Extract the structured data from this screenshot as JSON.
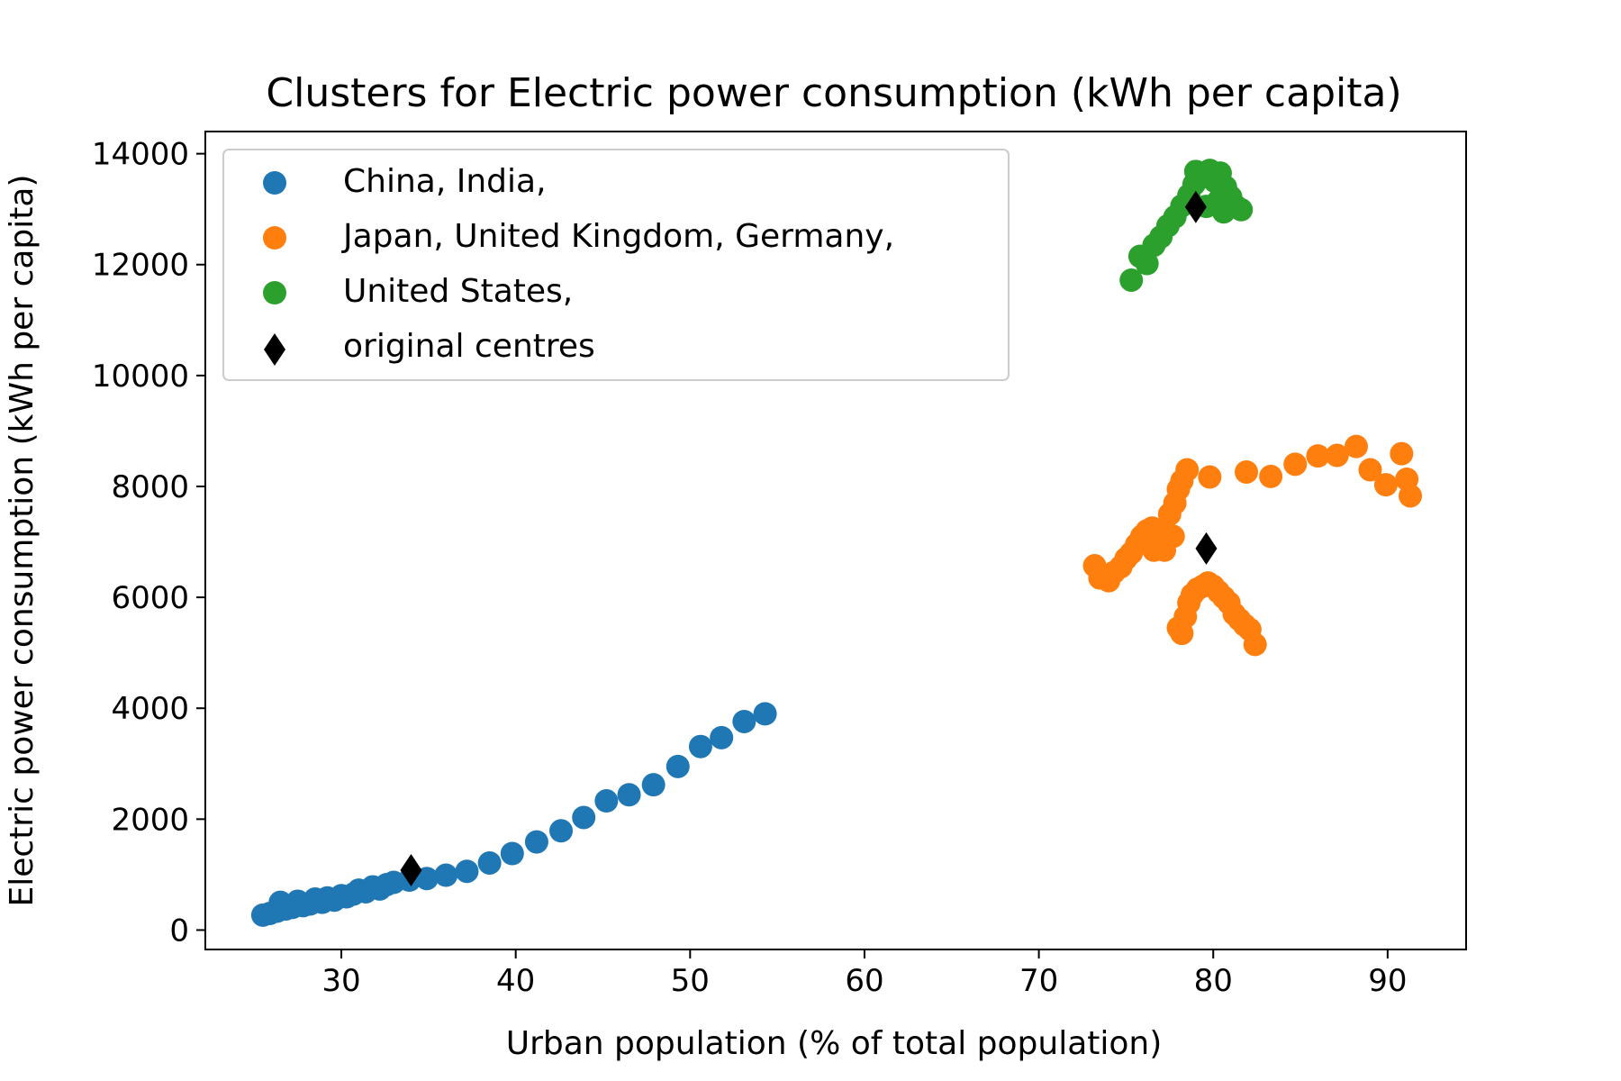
{
  "chart_data": {
    "type": "scatter",
    "title": "Clusters for Electric power consumption (kWh per capita)",
    "xlabel": "Urban population (% of total population)",
    "ylabel": "Electric power consumption (kWh per capita)",
    "xlim": [
      22.2,
      94.5
    ],
    "ylim": [
      -350,
      14400
    ],
    "xticks": [
      30,
      40,
      50,
      60,
      70,
      80,
      90
    ],
    "yticks": [
      0,
      2000,
      4000,
      6000,
      8000,
      10000,
      12000,
      14000
    ],
    "grid": false,
    "legend": {
      "placement": "upper-left"
    },
    "series": [
      {
        "name": "China, India,",
        "color": "#1f77b4",
        "marker": "circle",
        "points": [
          [
            25.5,
            270
          ],
          [
            25.9,
            300
          ],
          [
            26.3,
            340
          ],
          [
            26.5,
            500
          ],
          [
            26.8,
            380
          ],
          [
            27.2,
            410
          ],
          [
            27.5,
            520
          ],
          [
            27.8,
            440
          ],
          [
            28.2,
            470
          ],
          [
            28.5,
            560
          ],
          [
            28.9,
            500
          ],
          [
            29.2,
            580
          ],
          [
            29.6,
            540
          ],
          [
            30.0,
            620
          ],
          [
            30.3,
            600
          ],
          [
            30.7,
            650
          ],
          [
            31.0,
            720
          ],
          [
            31.4,
            690
          ],
          [
            31.8,
            780
          ],
          [
            32.2,
            740
          ],
          [
            32.6,
            820
          ],
          [
            33.0,
            860
          ],
          [
            33.9,
            900
          ],
          [
            34.9,
            930
          ],
          [
            36.0,
            990
          ],
          [
            37.2,
            1060
          ],
          [
            38.5,
            1210
          ],
          [
            39.8,
            1380
          ],
          [
            41.2,
            1590
          ],
          [
            42.6,
            1790
          ],
          [
            43.9,
            2030
          ],
          [
            45.2,
            2330
          ],
          [
            46.5,
            2440
          ],
          [
            47.9,
            2620
          ],
          [
            49.3,
            2950
          ],
          [
            50.6,
            3310
          ],
          [
            51.8,
            3470
          ],
          [
            53.1,
            3760
          ],
          [
            54.3,
            3900
          ]
        ]
      },
      {
        "name": "Japan, United Kingdom, Germany,",
        "color": "#ff7f0e",
        "marker": "circle",
        "points": [
          [
            73.2,
            6570
          ],
          [
            73.5,
            6350
          ],
          [
            74.0,
            6300
          ],
          [
            74.3,
            6450
          ],
          [
            74.7,
            6550
          ],
          [
            75.0,
            6700
          ],
          [
            75.3,
            6800
          ],
          [
            75.6,
            6950
          ],
          [
            75.9,
            7100
          ],
          [
            76.2,
            7200
          ],
          [
            76.5,
            7250
          ],
          [
            76.8,
            7100
          ],
          [
            77.1,
            7200
          ],
          [
            77.4,
            7050
          ],
          [
            77.7,
            7100
          ],
          [
            76.6,
            6850
          ],
          [
            77.2,
            6850
          ],
          [
            77.5,
            7500
          ],
          [
            77.8,
            7700
          ],
          [
            78.0,
            7950
          ],
          [
            78.2,
            8100
          ],
          [
            78.5,
            8300
          ],
          [
            79.8,
            8170
          ],
          [
            81.9,
            8260
          ],
          [
            83.3,
            8180
          ],
          [
            84.7,
            8400
          ],
          [
            86.0,
            8550
          ],
          [
            87.1,
            8560
          ],
          [
            88.2,
            8720
          ],
          [
            89.0,
            8300
          ],
          [
            89.9,
            8030
          ],
          [
            90.8,
            8590
          ],
          [
            91.1,
            8130
          ],
          [
            91.3,
            7830
          ],
          [
            78.0,
            5450
          ],
          [
            78.2,
            5350
          ],
          [
            78.4,
            5650
          ],
          [
            78.6,
            5900
          ],
          [
            78.8,
            6050
          ],
          [
            79.1,
            6150
          ],
          [
            79.4,
            6200
          ],
          [
            79.7,
            6260
          ],
          [
            80.0,
            6200
          ],
          [
            80.3,
            6100
          ],
          [
            80.6,
            6000
          ],
          [
            80.9,
            5900
          ],
          [
            81.2,
            5700
          ],
          [
            81.5,
            5600
          ],
          [
            81.8,
            5500
          ],
          [
            82.1,
            5420
          ],
          [
            82.4,
            5150
          ]
        ]
      },
      {
        "name": "United States,",
        "color": "#2ca02c",
        "marker": "circle",
        "points": [
          [
            75.3,
            11720
          ],
          [
            75.8,
            12150
          ],
          [
            76.2,
            12020
          ],
          [
            76.6,
            12350
          ],
          [
            77.0,
            12500
          ],
          [
            77.4,
            12700
          ],
          [
            77.8,
            12860
          ],
          [
            78.2,
            13060
          ],
          [
            78.6,
            13250
          ],
          [
            78.9,
            13450
          ],
          [
            79.0,
            13680
          ],
          [
            79.4,
            13580
          ],
          [
            79.8,
            13700
          ],
          [
            80.1,
            13500
          ],
          [
            80.4,
            13650
          ],
          [
            80.7,
            13400
          ],
          [
            81.0,
            13220
          ],
          [
            81.3,
            13050
          ],
          [
            81.6,
            12990
          ],
          [
            80.6,
            12950
          ],
          [
            79.6,
            13050
          ],
          [
            80.3,
            13150
          ]
        ]
      }
    ],
    "centres": {
      "name": "original centres",
      "color": "#000000",
      "marker": "diamond",
      "points": [
        [
          34.0,
          1080
        ],
        [
          79.6,
          6880
        ],
        [
          79.0,
          13040
        ]
      ]
    }
  }
}
